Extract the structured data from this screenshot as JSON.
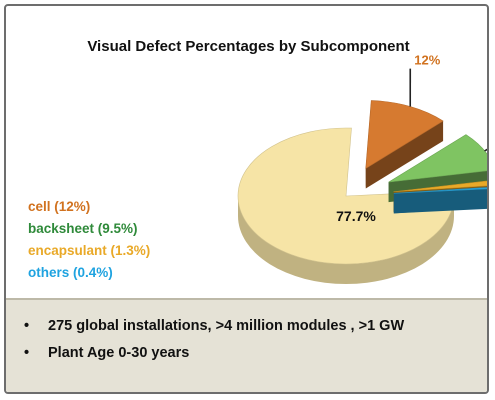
{
  "chart_data": {
    "type": "pie",
    "title": "Visual Defect Percentages by Subcomponent",
    "slices": [
      {
        "label": "cell (12%)",
        "value": 12,
        "data_label": "12%",
        "color": "#d67a30"
      },
      {
        "label": "backsheet (9.5%)",
        "value": 9.5,
        "data_label": "9.5%",
        "color": "#7fc462"
      },
      {
        "label": "encapsulant (1.3%)",
        "value": 1.3,
        "data_label": "1.3%",
        "color": "#e9a928"
      },
      {
        "label": "others (0.4%)",
        "value": 0.4,
        "data_label": "0.4%",
        "color": "#2aa8e0"
      },
      {
        "label": "",
        "value": 77.7,
        "data_label": "77.7%",
        "color": "#f6e4a6"
      }
    ],
    "legend_position": "left"
  },
  "legend_colors": {
    "cell": "#d1721f",
    "backsheet": "#2f8a3a",
    "encapsulant": "#e9a928",
    "others": "#1fa3e0"
  },
  "footer": {
    "bullet_symbol": "•",
    "bullets": [
      "275 global installations, >4 million modules , >1 GW",
      "Plant Age 0-30 years"
    ]
  }
}
